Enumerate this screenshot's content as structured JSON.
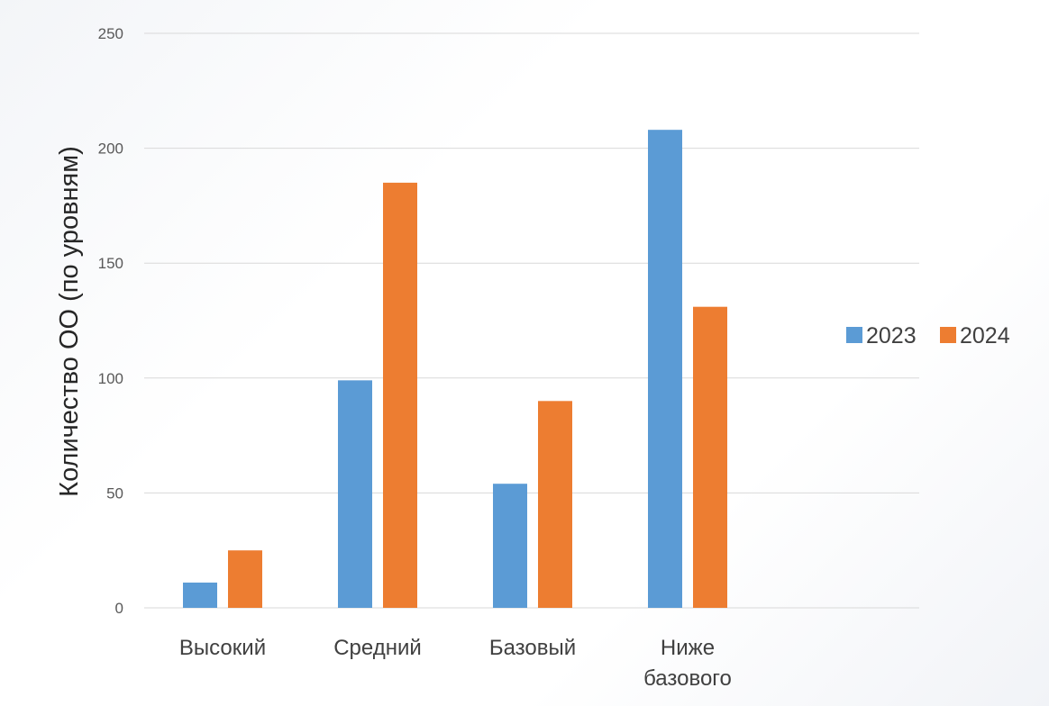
{
  "chart_data": {
    "type": "bar",
    "title": "",
    "xlabel": "",
    "ylabel": "Количество ОО (по уровням)",
    "categories": [
      [
        "Высокий"
      ],
      [
        "Средний"
      ],
      [
        "Базовый"
      ],
      [
        "Ниже",
        "базового"
      ]
    ],
    "series": [
      {
        "name": "2023",
        "color": "#5b9bd5",
        "values": [
          11,
          99,
          54,
          208
        ]
      },
      {
        "name": "2024",
        "color": "#ed7d31",
        "values": [
          25,
          185,
          90,
          131
        ]
      }
    ],
    "ylim": [
      0,
      250
    ],
    "yticks": [
      0,
      50,
      100,
      150,
      200,
      250
    ],
    "grid": true,
    "legend_position": "right"
  }
}
